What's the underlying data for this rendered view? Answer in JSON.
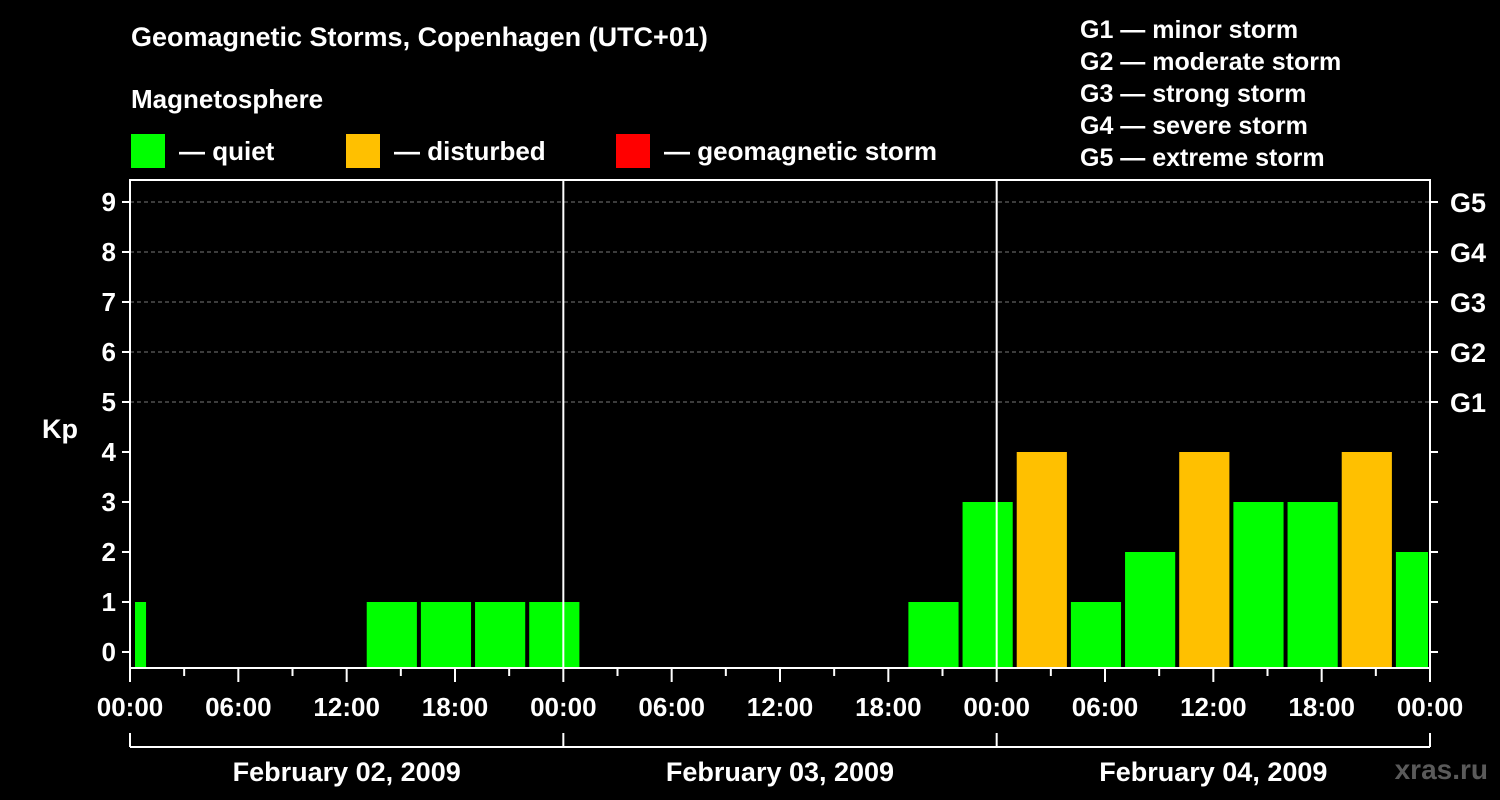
{
  "title": "Geomagnetic Storms, Copenhagen (UTC+01)",
  "legend": {
    "title": "Magnetosphere",
    "items": [
      {
        "label": "— quiet",
        "color": "#00ff00"
      },
      {
        "label": "— disturbed",
        "color": "#ffc000"
      },
      {
        "label": "— geomagnetic storm",
        "color": "#ff0000"
      }
    ]
  },
  "storm_scale": [
    "G1 — minor storm",
    "G2 — moderate storm",
    "G3 — strong storm",
    "G4 — severe storm",
    "G5 — extreme storm"
  ],
  "watermark": "xras.ru",
  "chart_data": {
    "type": "bar",
    "ylabel": "Kp",
    "ylim": [
      0,
      9
    ],
    "yticks": [
      0,
      1,
      2,
      3,
      4,
      5,
      6,
      7,
      8,
      9
    ],
    "right_axis": [
      {
        "kp": 5,
        "label": "G1"
      },
      {
        "kp": 6,
        "label": "G2"
      },
      {
        "kp": 7,
        "label": "G3"
      },
      {
        "kp": 8,
        "label": "G4"
      },
      {
        "kp": 9,
        "label": "G5"
      }
    ],
    "xtick_labels": [
      "00:00",
      "06:00",
      "12:00",
      "18:00",
      "00:00",
      "06:00",
      "12:00",
      "18:00",
      "00:00",
      "06:00",
      "12:00",
      "18:00",
      "00:00"
    ],
    "days": [
      "February 02, 2009",
      "February 03, 2009",
      "February 04, 2009"
    ],
    "grid": "dashed at Kp 5–9",
    "bars": [
      {
        "start": "2009-02-02 00:00",
        "end": "2009-02-02 01:00",
        "kp": 1,
        "color": "#00ff00"
      },
      {
        "start": "2009-02-02 13:00",
        "end": "2009-02-02 16:00",
        "kp": 1,
        "color": "#00ff00"
      },
      {
        "start": "2009-02-02 16:00",
        "end": "2009-02-02 19:00",
        "kp": 1,
        "color": "#00ff00"
      },
      {
        "start": "2009-02-02 19:00",
        "end": "2009-02-02 22:00",
        "kp": 1,
        "color": "#00ff00"
      },
      {
        "start": "2009-02-02 22:00",
        "end": "2009-02-03 01:00",
        "kp": 1,
        "color": "#00ff00"
      },
      {
        "start": "2009-02-03 19:00",
        "end": "2009-02-03 22:00",
        "kp": 1,
        "color": "#00ff00"
      },
      {
        "start": "2009-02-03 22:00",
        "end": "2009-02-04 01:00",
        "kp": 3,
        "color": "#00ff00"
      },
      {
        "start": "2009-02-04 01:00",
        "end": "2009-02-04 04:00",
        "kp": 4,
        "color": "#ffc000"
      },
      {
        "start": "2009-02-04 04:00",
        "end": "2009-02-04 07:00",
        "kp": 1,
        "color": "#00ff00"
      },
      {
        "start": "2009-02-04 07:00",
        "end": "2009-02-04 10:00",
        "kp": 2,
        "color": "#00ff00"
      },
      {
        "start": "2009-02-04 10:00",
        "end": "2009-02-04 13:00",
        "kp": 4,
        "color": "#ffc000"
      },
      {
        "start": "2009-02-04 13:00",
        "end": "2009-02-04 16:00",
        "kp": 3,
        "color": "#00ff00"
      },
      {
        "start": "2009-02-04 16:00",
        "end": "2009-02-04 19:00",
        "kp": 3,
        "color": "#00ff00"
      },
      {
        "start": "2009-02-04 19:00",
        "end": "2009-02-04 22:00",
        "kp": 4,
        "color": "#ffc000"
      },
      {
        "start": "2009-02-04 22:00",
        "end": "2009-02-05 00:00",
        "kp": 2,
        "color": "#00ff00"
      }
    ]
  }
}
